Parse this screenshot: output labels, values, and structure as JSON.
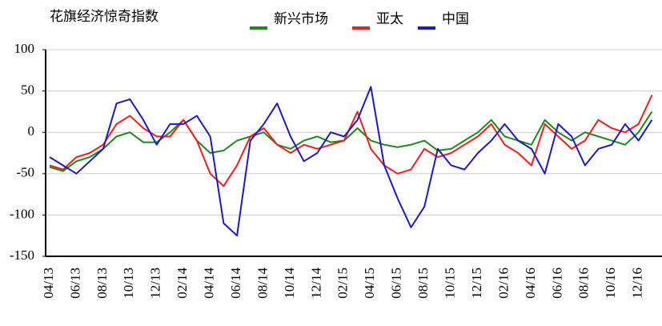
{
  "chart_data": {
    "type": "line",
    "title": "花旗经济惊奇指数",
    "categories": [
      "04/13",
      null,
      "06/13",
      null,
      "08/13",
      null,
      "10/13",
      null,
      "12/13",
      null,
      "02/14",
      null,
      "04/14",
      null,
      "06/14",
      null,
      "08/14",
      null,
      "10/14",
      null,
      "12/14",
      null,
      "02/15",
      null,
      "04/15",
      null,
      "06/15",
      null,
      "08/15",
      null,
      "10/15",
      null,
      "12/15",
      null,
      "02/16",
      null,
      "04/16",
      null,
      "06/16",
      null,
      "08/16",
      null,
      "10/16",
      null,
      "12/16",
      null
    ],
    "series": [
      {
        "name": "新兴市场",
        "color": "#1a8a1a",
        "values": [
          -42,
          -47,
          -35,
          -30,
          -20,
          -5,
          0,
          -12,
          -12,
          0,
          15,
          -10,
          -25,
          -22,
          -10,
          -5,
          0,
          -15,
          -20,
          -10,
          -5,
          -12,
          -10,
          5,
          -10,
          -15,
          -18,
          -15,
          -10,
          -22,
          -20,
          -10,
          0,
          15,
          -5,
          -10,
          -15,
          15,
          0,
          -10,
          0,
          -5,
          -10,
          -15,
          0,
          25
        ]
      },
      {
        "name": "亚太",
        "color": "#ff1a1a",
        "values": [
          -40,
          -45,
          -30,
          -25,
          -15,
          10,
          20,
          5,
          -5,
          -5,
          15,
          -10,
          -50,
          -65,
          -40,
          -5,
          5,
          -15,
          -25,
          -15,
          -20,
          -15,
          -10,
          25,
          -20,
          -40,
          -50,
          -45,
          -20,
          -30,
          -25,
          -15,
          -5,
          10,
          -15,
          -25,
          -40,
          10,
          -5,
          -20,
          -10,
          15,
          5,
          0,
          10,
          45
        ]
      },
      {
        "name": "中国",
        "color": "#1a1acc",
        "values": [
          -30,
          -40,
          -50,
          -35,
          -20,
          35,
          40,
          15,
          -15,
          10,
          10,
          20,
          -5,
          -110,
          -125,
          -10,
          10,
          35,
          -5,
          -35,
          -25,
          0,
          -5,
          15,
          55,
          -40,
          -80,
          -115,
          -90,
          -20,
          -40,
          -45,
          -25,
          -10,
          10,
          -10,
          -20,
          -50,
          10,
          -5,
          -40,
          -20,
          -15,
          10,
          -10,
          15
        ]
      }
    ],
    "ylim": [
      -150,
      100
    ],
    "yticks": [
      -150,
      -100,
      -50,
      0,
      50,
      100
    ],
    "grid": true
  }
}
